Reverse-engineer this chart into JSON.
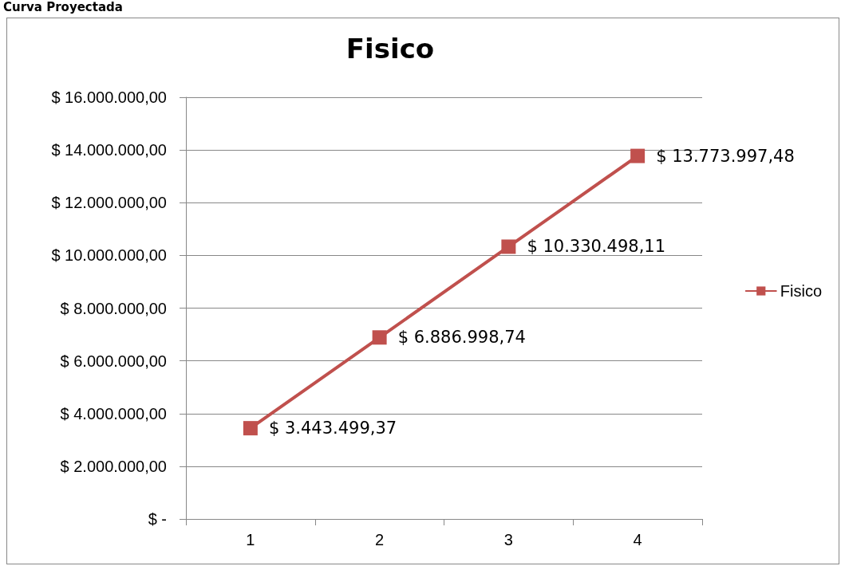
{
  "chart_data": {
    "type": "line",
    "title": "Fisico",
    "annotations": [
      "Curva Proyectada"
    ],
    "categories": [
      "1",
      "2",
      "3",
      "4"
    ],
    "series": [
      {
        "name": "Fisico",
        "color": "#c0504d",
        "values": [
          3443499.37,
          6886998.74,
          10330498.11,
          13773997.48
        ],
        "value_labels": [
          "$ 3.443.499,37",
          "$ 6.886.998,74",
          "$ 10.330.498,11",
          "$ 13.773.997,48"
        ]
      }
    ],
    "ylim": [
      0,
      16000000
    ],
    "yticks": [
      {
        "value": 0,
        "label": "$ -"
      },
      {
        "value": 2000000,
        "label": "$ 2.000.000,00"
      },
      {
        "value": 4000000,
        "label": "$ 4.000.000,00"
      },
      {
        "value": 6000000,
        "label": "$ 6.000.000,00"
      },
      {
        "value": 8000000,
        "label": "$ 8.000.000,00"
      },
      {
        "value": 10000000,
        "label": "$ 10.000.000,00"
      },
      {
        "value": 12000000,
        "label": "$ 12.000.000,00"
      },
      {
        "value": 14000000,
        "label": "$ 14.000.000,00"
      },
      {
        "value": 16000000,
        "label": "$ 16.000.000,00"
      }
    ],
    "grid": "y",
    "legend": "right",
    "marker": "square",
    "line_style": "solid"
  }
}
